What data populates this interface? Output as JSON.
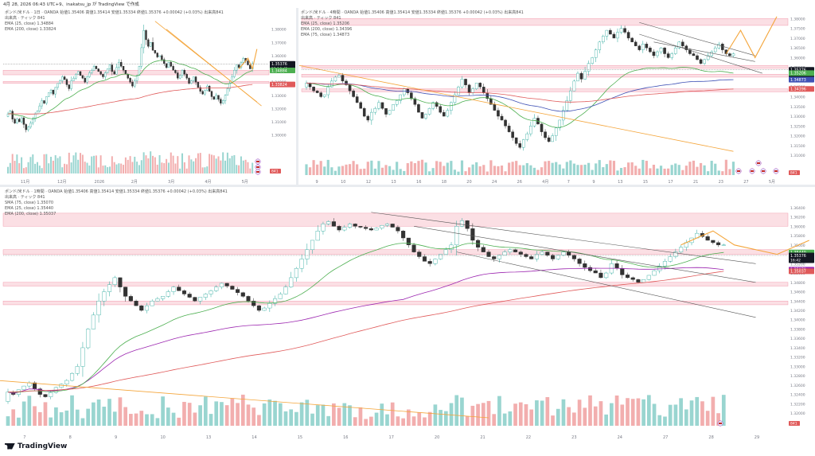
{
  "header": {
    "timestamp": "4月 28, 2026 06:43 UTC+9、inakatsu_jp が TradingView で作成"
  },
  "footer": {
    "brand": "TradingView"
  },
  "panels": [
    {
      "symbol": "ポンド/米ドル · 1日 · OANDA",
      "ohlc": "始値1.35406 高値1.35414 安値1.35334 終値1.35376 +0.00042 (+0.03%) 出来高841",
      "volume_label": "出来高 · ティック 841",
      "indicators": [
        {
          "label": "EMA (25, close) 1.34884",
          "color": "#4caf50"
        },
        {
          "label": "EMA (200, close) 1.33824",
          "color": "#e05a5a"
        }
      ],
      "x_labels": [
        "11月",
        "12月",
        "2026",
        "2月",
        "3月",
        "4月",
        "5月"
      ],
      "y_labels": [
        "1.38000",
        "1.37000",
        "1.36000",
        "1.35000",
        "1.34000",
        "1.33000",
        "1.32000",
        "1.31000",
        "1.30000"
      ],
      "price_tags": [
        {
          "value": "1.35376",
          "sub": "23:16:42",
          "color": "#131722"
        },
        {
          "value": "1.34884",
          "color": "#4caf50"
        },
        {
          "value": "1.33824",
          "color": "#e05a5a"
        }
      ],
      "vol_tag": "841"
    },
    {
      "symbol": "ポンド/米ドル · 4時間 · OANDA",
      "ohlc": "始値1.35406 高値1.35414 安値1.35334 終値1.35376 +0.00042 (+0.03%) 出来高841",
      "volume_label": "出来高 · ティック 841",
      "indicators": [
        {
          "label": "EMA (25, close) 1.35206",
          "color": "#4caf50"
        },
        {
          "label": "EMA (200, close) 1.34396",
          "color": "#e05a5a"
        },
        {
          "label": "EMA (75, close) 1.34873",
          "color": "#3f51b5"
        }
      ],
      "x_labels": [
        "9",
        "10",
        "12",
        "13",
        "16",
        "18",
        "20",
        "24",
        "26",
        "4月",
        "7",
        "9",
        "13",
        "15",
        "17",
        "21",
        "23",
        "27",
        "5月"
      ],
      "y_labels": [
        "1.38000",
        "1.37500",
        "1.37000",
        "1.36500",
        "1.36000",
        "1.35500",
        "1.35000",
        "1.34500",
        "1.34000",
        "1.33500",
        "1.33000",
        "1.32500",
        "1.32000",
        "1.31500",
        "1.31000"
      ],
      "price_tags": [
        {
          "value": "1.35376",
          "sub": "03:16:42",
          "color": "#131722"
        },
        {
          "value": "1.35206",
          "color": "#4caf50"
        },
        {
          "value": "1.34873",
          "color": "#3f51b5"
        },
        {
          "value": "1.34396",
          "color": "#e05a5a"
        }
      ],
      "vol_tag": "841"
    },
    {
      "symbol": "ポンド/米ドル · 1時間 · OANDA",
      "ohlc": "始値1.35406 高値1.35414 安値1.35334 終値1.35376 +0.00042 (+0.03%) 出来高841",
      "volume_label": "出来高 · ティック 841",
      "indicators": [
        {
          "label": "SMA (75, close) 1.35070",
          "color": "#9c27b0"
        },
        {
          "label": "EMA (25, close) 1.35440",
          "color": "#4caf50"
        },
        {
          "label": "EMA (200, close) 1.35037",
          "color": "#e05a5a"
        }
      ],
      "x_labels": [
        "7",
        "8",
        "9",
        "10",
        "13",
        "14",
        "15",
        "16",
        "17",
        "20",
        "21",
        "22",
        "23",
        "24",
        "27",
        "28",
        "29"
      ],
      "y_labels": [
        "1.36400",
        "1.36200",
        "1.36000",
        "1.35800",
        "1.35600",
        "1.35400",
        "1.35200",
        "1.35000",
        "1.34800",
        "1.34600",
        "1.34400",
        "1.34200",
        "1.34000",
        "1.33800",
        "1.33600",
        "1.33400",
        "1.33200",
        "1.33000",
        "1.32800",
        "1.32600",
        "1.32400",
        "1.32200",
        "1.32000"
      ],
      "price_tags": [
        {
          "value": "1.35440",
          "color": "#4caf50"
        },
        {
          "value": "1.35376",
          "sub": "16:42",
          "color": "#131722"
        },
        {
          "value": "1.35070",
          "color": "#9c27b0"
        },
        {
          "value": "1.35037",
          "color": "#e05a5a"
        }
      ],
      "vol_tag": "841"
    }
  ],
  "chart_data": [
    {
      "type": "candlestick",
      "title": "ポンド/米ドル · 1日 · OANDA",
      "ylim": [
        1.295,
        1.39
      ],
      "close": [
        1.316,
        1.318,
        1.312,
        1.309,
        1.312,
        1.31,
        1.313,
        1.308,
        1.304,
        1.306,
        1.309,
        1.312,
        1.316,
        1.318,
        1.322,
        1.326,
        1.324,
        1.329,
        1.332,
        1.334,
        1.331,
        1.336,
        1.339,
        1.341,
        1.344,
        1.342,
        1.338,
        1.335,
        1.341,
        1.343,
        1.346,
        1.348,
        1.345,
        1.343,
        1.34,
        1.344,
        1.347,
        1.349,
        1.352,
        1.35,
        1.348,
        1.346,
        1.344,
        1.347,
        1.35,
        1.353,
        1.348,
        1.346,
        1.351,
        1.355,
        1.352,
        1.349,
        1.346,
        1.343,
        1.34,
        1.337,
        1.341,
        1.345,
        1.352,
        1.366,
        1.379,
        1.372,
        1.367,
        1.37,
        1.364,
        1.362,
        1.359,
        1.36,
        1.357,
        1.354,
        1.351,
        1.355,
        1.352,
        1.349,
        1.347,
        1.343,
        1.345,
        1.349,
        1.346,
        1.343,
        1.339,
        1.341,
        1.344,
        1.34,
        1.336,
        1.333,
        1.331,
        1.334,
        1.337,
        1.333,
        1.329,
        1.327,
        1.33,
        1.327,
        1.324,
        1.326,
        1.33,
        1.335,
        1.339,
        1.344,
        1.349,
        1.353,
        1.351,
        1.355,
        1.358,
        1.356,
        1.353,
        1.35,
        1.354
      ],
      "series": [
        {
          "name": "EMA (25, close)",
          "last": 1.34884
        },
        {
          "name": "EMA (200, close)",
          "last": 1.33824
        }
      ]
    },
    {
      "type": "candlestick",
      "title": "ポンド/米ドル · 4時間 · OANDA",
      "ylim": [
        1.308,
        1.383
      ],
      "close": [
        1.347,
        1.345,
        1.343,
        1.342,
        1.34,
        1.341,
        1.345,
        1.348,
        1.35,
        1.351,
        1.348,
        1.346,
        1.343,
        1.34,
        1.337,
        1.334,
        1.33,
        1.328,
        1.332,
        1.334,
        1.337,
        1.334,
        1.331,
        1.333,
        1.336,
        1.338,
        1.341,
        1.344,
        1.342,
        1.339,
        1.336,
        1.332,
        1.329,
        1.331,
        1.334,
        1.337,
        1.335,
        1.332,
        1.33,
        1.333,
        1.337,
        1.341,
        1.345,
        1.349,
        1.346,
        1.342,
        1.344,
        1.347,
        1.345,
        1.342,
        1.339,
        1.336,
        1.333,
        1.33,
        1.328,
        1.325,
        1.322,
        1.319,
        1.316,
        1.314,
        1.318,
        1.321,
        1.325,
        1.329,
        1.326,
        1.322,
        1.319,
        1.317,
        1.32,
        1.324,
        1.328,
        1.333,
        1.338,
        1.343,
        1.348,
        1.352,
        1.349,
        1.353,
        1.357,
        1.36,
        1.364,
        1.368,
        1.371,
        1.374,
        1.372,
        1.37,
        1.373,
        1.375,
        1.373,
        1.37,
        1.368,
        1.366,
        1.364,
        1.367,
        1.365,
        1.363,
        1.361,
        1.363,
        1.365,
        1.362,
        1.36,
        1.362,
        1.365,
        1.368,
        1.366,
        1.364,
        1.362,
        1.361,
        1.359,
        1.357,
        1.359,
        1.361,
        1.363,
        1.365,
        1.367,
        1.364,
        1.362,
        1.361,
        1.362
      ],
      "series": [
        {
          "name": "EMA (25, close)",
          "last": 1.35206
        },
        {
          "name": "EMA (75, close)",
          "last": 1.34873
        },
        {
          "name": "EMA (200, close)",
          "last": 1.34396
        }
      ]
    },
    {
      "type": "candlestick",
      "title": "ポンド/米ドル · 1時間 · OANDA",
      "ylim": [
        1.319,
        1.365
      ],
      "close": [
        1.3245,
        1.324,
        1.325,
        1.3258,
        1.3265,
        1.3252,
        1.324,
        1.3235,
        1.3244,
        1.3255,
        1.3262,
        1.327,
        1.3285,
        1.33,
        1.334,
        1.338,
        1.341,
        1.344,
        1.346,
        1.3475,
        1.349,
        1.347,
        1.345,
        1.344,
        1.343,
        1.342,
        1.343,
        1.344,
        1.3445,
        1.345,
        1.346,
        1.347,
        1.3462,
        1.3455,
        1.3448,
        1.344,
        1.3448,
        1.3455,
        1.3462,
        1.347,
        1.3478,
        1.3472,
        1.3465,
        1.3458,
        1.345,
        1.344,
        1.343,
        1.342,
        1.3425,
        1.3435,
        1.3445,
        1.3455,
        1.347,
        1.349,
        1.351,
        1.353,
        1.355,
        1.357,
        1.359,
        1.3605,
        1.361,
        1.36,
        1.3592,
        1.3598,
        1.3605,
        1.36,
        1.3598,
        1.3595,
        1.3592,
        1.3596,
        1.3602,
        1.3605,
        1.3598,
        1.359,
        1.3575,
        1.356,
        1.3545,
        1.3535,
        1.3525,
        1.352,
        1.353,
        1.354,
        1.355,
        1.356,
        1.36,
        1.3612,
        1.3595,
        1.357,
        1.3555,
        1.3545,
        1.3535,
        1.353,
        1.3538,
        1.3545,
        1.355,
        1.3545,
        1.354,
        1.3535,
        1.353,
        1.354,
        1.3545,
        1.3538,
        1.353,
        1.3538,
        1.3545,
        1.3538,
        1.353,
        1.352,
        1.3512,
        1.3505,
        1.35,
        1.349,
        1.35,
        1.352,
        1.351,
        1.3496,
        1.349,
        1.3486,
        1.348,
        1.3486,
        1.3495,
        1.3505,
        1.3515,
        1.3525,
        1.3535,
        1.3545,
        1.3555,
        1.3565,
        1.3575,
        1.3585,
        1.3578,
        1.357,
        1.3565,
        1.356,
        1.356
      ],
      "series": [
        {
          "name": "SMA (75, close)",
          "last": 1.3507
        },
        {
          "name": "EMA (25, close)",
          "last": 1.3544
        },
        {
          "name": "EMA (200, close)",
          "last": 1.35037
        }
      ]
    }
  ],
  "colors": {
    "up": "#26a69a",
    "down": "#333333",
    "zone": "#f7b8c4",
    "projection": "#f4a53a",
    "channel": "#555555"
  }
}
